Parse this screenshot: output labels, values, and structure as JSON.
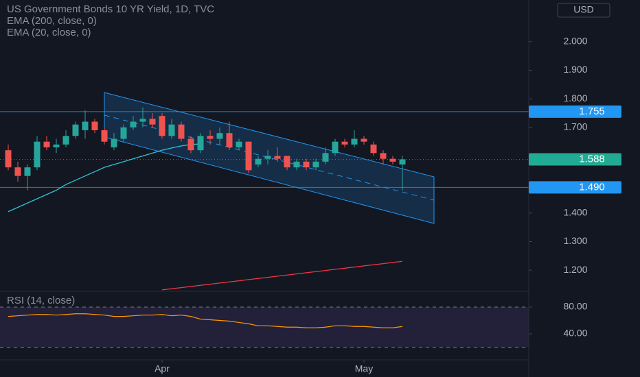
{
  "chart_data": [
    {
      "type": "candlestick",
      "title": "US Government Bonds 10 YR Yield, 1D, TVC",
      "currency": "USD",
      "categories": [
        null,
        null,
        null,
        null,
        null,
        null,
        null,
        null,
        null,
        null,
        null,
        null,
        null,
        null,
        null,
        null,
        "Apr",
        null,
        null,
        null,
        null,
        null,
        null,
        null,
        null,
        null,
        null,
        null,
        null,
        null,
        null,
        null,
        null,
        null,
        null,
        null,
        null,
        "May",
        null,
        null,
        null,
        null
      ],
      "open": [
        1.62,
        1.56,
        1.53,
        1.56,
        1.65,
        1.63,
        1.64,
        1.67,
        1.69,
        1.72,
        1.69,
        1.63,
        1.66,
        1.7,
        1.72,
        1.73,
        1.74,
        1.67,
        1.71,
        1.66,
        1.62,
        1.67,
        1.66,
        1.68,
        1.63,
        1.65,
        1.57,
        1.59,
        1.6,
        1.6,
        1.56,
        1.58,
        1.56,
        1.58,
        1.61,
        1.65,
        1.64,
        1.66,
        1.64,
        1.61,
        1.59,
        1.57
      ],
      "high": [
        1.64,
        1.58,
        1.57,
        1.67,
        1.67,
        1.66,
        1.69,
        1.72,
        1.76,
        1.73,
        1.7,
        1.68,
        1.71,
        1.74,
        1.77,
        1.75,
        1.75,
        1.73,
        1.72,
        1.67,
        1.68,
        1.69,
        1.7,
        1.72,
        1.66,
        1.65,
        1.6,
        1.62,
        1.63,
        1.6,
        1.59,
        1.59,
        1.59,
        1.63,
        1.66,
        1.66,
        1.69,
        1.67,
        1.65,
        1.62,
        1.6,
        1.6
      ],
      "low": [
        1.55,
        1.51,
        1.48,
        1.55,
        1.62,
        1.61,
        1.63,
        1.66,
        1.66,
        1.68,
        1.64,
        1.62,
        1.65,
        1.69,
        1.7,
        1.7,
        1.66,
        1.66,
        1.65,
        1.61,
        1.61,
        1.64,
        1.64,
        1.62,
        1.62,
        1.54,
        1.56,
        1.57,
        1.58,
        1.55,
        1.55,
        1.55,
        1.55,
        1.57,
        1.6,
        1.63,
        1.63,
        1.64,
        1.6,
        1.57,
        1.57,
        1.48
      ],
      "close": [
        1.56,
        1.53,
        1.56,
        1.65,
        1.63,
        1.64,
        1.67,
        1.71,
        1.72,
        1.69,
        1.65,
        1.66,
        1.7,
        1.72,
        1.73,
        1.71,
        1.67,
        1.71,
        1.66,
        1.62,
        1.67,
        1.66,
        1.68,
        1.63,
        1.65,
        1.55,
        1.59,
        1.6,
        1.59,
        1.56,
        1.58,
        1.56,
        1.58,
        1.61,
        1.65,
        1.64,
        1.66,
        1.65,
        1.61,
        1.59,
        1.58,
        1.588
      ],
      "up_color": "#26a69a",
      "down_color": "#ef5350",
      "series": [
        {
          "name": "EMA (200, close, 0)",
          "color": "#f23645",
          "values": [
            null,
            null,
            null,
            null,
            null,
            null,
            null,
            null,
            null,
            null,
            null,
            null,
            null,
            null,
            null,
            null,
            1.131,
            1.135,
            1.139,
            1.143,
            1.147,
            1.151,
            1.155,
            1.159,
            1.163,
            1.167,
            1.171,
            1.175,
            1.179,
            1.183,
            1.187,
            1.191,
            1.195,
            1.199,
            1.203,
            1.207,
            1.211,
            1.215,
            1.219,
            1.223,
            1.227,
            1.231
          ]
        },
        {
          "name": "EMA (20, close, 0)",
          "color": "#2ec4d6",
          "values": [
            1.405,
            1.42,
            1.435,
            1.45,
            1.465,
            1.48,
            1.5,
            1.515,
            1.53,
            1.545,
            1.56,
            1.57,
            1.58,
            1.59,
            1.6,
            1.61,
            1.62,
            1.628,
            1.635,
            1.64,
            1.642,
            null,
            null,
            null,
            null,
            null,
            null,
            null,
            null,
            null,
            null,
            null,
            null,
            null,
            null,
            null,
            null,
            null,
            null,
            null,
            null,
            null
          ]
        }
      ],
      "ylim": [
        1.126,
        2.146
      ],
      "yticks": [
        {
          "value": 2.0,
          "label": "2.000"
        },
        {
          "value": 1.9,
          "label": "1.900"
        },
        {
          "value": 1.8,
          "label": "1.800"
        },
        {
          "value": 1.7,
          "label": "1.700"
        },
        {
          "value": 1.4,
          "label": "1.400"
        },
        {
          "value": 1.3,
          "label": "1.300"
        },
        {
          "value": 1.2,
          "label": "1.200"
        }
      ],
      "price_lines": [
        {
          "price": 1.755,
          "color": "#2196f3"
        },
        {
          "price": 1.588,
          "color": "#22ab94",
          "style": "dotted"
        },
        {
          "price": {
            "value": 1.49,
            "label": "1.490"
          },
          "color": "#2196f3"
        }
      ]
    },
    {
      "type": "line",
      "title": "RSI (14, close)",
      "color": "#ff9800",
      "band": [
        20,
        80
      ],
      "values": [
        66,
        67,
        68,
        69,
        69,
        68,
        69,
        70,
        70,
        69,
        68,
        66,
        66,
        67,
        68,
        68,
        69,
        67,
        68,
        66,
        62,
        61,
        60,
        59,
        57,
        55,
        52,
        52,
        51,
        50,
        50,
        49,
        49,
        50,
        52,
        52,
        51,
        51,
        50,
        49,
        49,
        51
      ],
      "ylim": [
        1,
        103.6
      ],
      "yticks": [
        {
          "value": 80,
          "label": "80.00"
        },
        {
          "value": 40,
          "label": "40.00"
        }
      ]
    }
  ]
}
